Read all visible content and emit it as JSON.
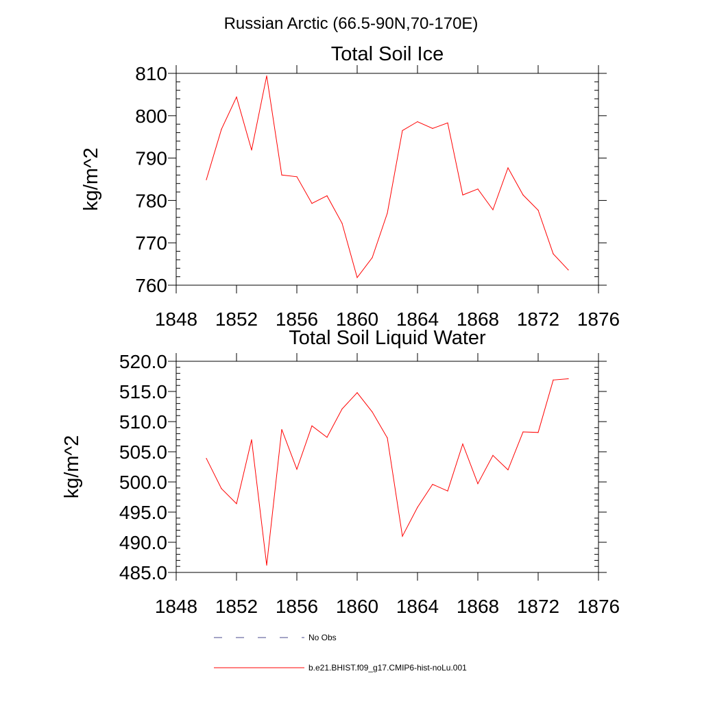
{
  "figure": {
    "title": "Russian Arctic (66.5-90N,70-170E)"
  },
  "chart_data": [
    {
      "type": "line",
      "title": "Total Soil Ice",
      "xlabel": "",
      "ylabel": "kg/m^2",
      "xlim": [
        1848,
        1876
      ],
      "ylim": [
        760,
        810
      ],
      "xticks": [
        1848,
        1852,
        1856,
        1860,
        1864,
        1868,
        1872,
        1876
      ],
      "xtick_labels": [
        "1848",
        "1852",
        "1856",
        "1860",
        "1864",
        "1868",
        "1872",
        "1876"
      ],
      "yticks": [
        760,
        770,
        780,
        790,
        800,
        810
      ],
      "ytick_labels": [
        "760",
        "770",
        "780",
        "790",
        "800",
        "810"
      ],
      "grid": false,
      "series": [
        {
          "name": "b.e21.BHIST.f09_g17.CMIP6-hist-noLu.001",
          "color": "#ff0000",
          "x": [
            1850,
            1851,
            1852,
            1853,
            1854,
            1855,
            1856,
            1857,
            1858,
            1859,
            1860,
            1861,
            1862,
            1863,
            1864,
            1865,
            1866,
            1867,
            1868,
            1869,
            1870,
            1871,
            1872,
            1873,
            1874
          ],
          "y": [
            784.9,
            796.8,
            804.4,
            791.9,
            809.4,
            786.0,
            785.6,
            779.3,
            781.1,
            774.6,
            761.8,
            766.5,
            777.0,
            796.5,
            798.6,
            797.0,
            798.3,
            781.3,
            782.7,
            777.8,
            787.7,
            781.3,
            777.7,
            767.4,
            763.6
          ]
        }
      ]
    },
    {
      "type": "line",
      "title": "Total Soil Liquid Water",
      "xlabel": "",
      "ylabel": "kg/m^2",
      "xlim": [
        1848,
        1876
      ],
      "ylim": [
        485,
        520
      ],
      "xticks": [
        1848,
        1852,
        1856,
        1860,
        1864,
        1868,
        1872,
        1876
      ],
      "xtick_labels": [
        "1848",
        "1852",
        "1856",
        "1860",
        "1864",
        "1868",
        "1872",
        "1876"
      ],
      "yticks": [
        485,
        490,
        495,
        500,
        505,
        510,
        515,
        520
      ],
      "ytick_labels": [
        "485.0",
        "490.0",
        "495.0",
        "500.0",
        "505.0",
        "510.0",
        "515.0",
        "520.0"
      ],
      "grid": false,
      "series": [
        {
          "name": "b.e21.BHIST.f09_g17.CMIP6-hist-noLu.001",
          "color": "#ff0000",
          "x": [
            1850,
            1851,
            1852,
            1853,
            1854,
            1855,
            1856,
            1857,
            1858,
            1859,
            1860,
            1861,
            1862,
            1863,
            1864,
            1865,
            1866,
            1867,
            1868,
            1869,
            1870,
            1871,
            1872,
            1873,
            1874
          ],
          "y": [
            503.9,
            498.9,
            496.4,
            507.0,
            486.2,
            508.7,
            502.1,
            509.3,
            507.4,
            512.1,
            514.8,
            511.6,
            507.3,
            491.0,
            495.8,
            499.6,
            498.5,
            506.3,
            499.7,
            504.4,
            502.0,
            508.3,
            508.2,
            516.9,
            517.1
          ]
        }
      ]
    }
  ],
  "legend": {
    "items": [
      {
        "label": "No Obs",
        "style": "dashed",
        "color": "#4a4a8c"
      },
      {
        "label": "b.e21.BHIST.f09_g17.CMIP6-hist-noLu.001",
        "style": "solid",
        "color": "#ff0000"
      }
    ]
  }
}
